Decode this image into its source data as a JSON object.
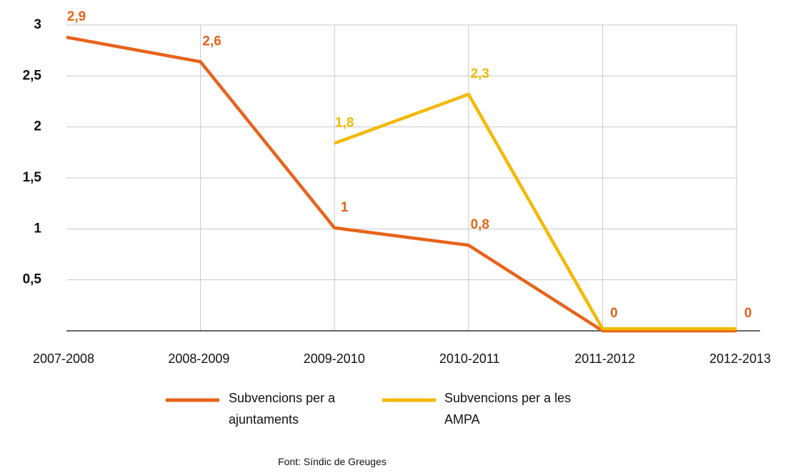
{
  "chart_data": {
    "type": "line",
    "categories": [
      "2007-2008",
      "2008-2009",
      "2009-2010",
      "2010-2011",
      "2011-2012",
      "2012-2013"
    ],
    "series": [
      {
        "name": "Subvencions per a ajuntaments",
        "color": "#e8631a",
        "values": [
          2.88,
          2.64,
          1.01,
          0.84,
          0,
          0
        ],
        "value_labels": [
          "2,9",
          "2,6",
          "1",
          "0,8",
          "0",
          "0"
        ]
      },
      {
        "name": "Subvencions per a les AMPA",
        "color": "#f5b800",
        "values": [
          null,
          null,
          1.84,
          2.32,
          0.02,
          0.02
        ],
        "value_labels": [
          null,
          null,
          "1,8",
          "2,3",
          null,
          null
        ]
      }
    ],
    "ylim": [
      0,
      3
    ],
    "yticks": [
      {
        "value": 0.5,
        "label": "0,5"
      },
      1,
      {
        "value": 1.5,
        "label": "1,5"
      },
      2,
      {
        "value": 2.5,
        "label": "2,5"
      },
      3
    ],
    "grid": true,
    "source": "Font: Síndic de Greuges"
  }
}
